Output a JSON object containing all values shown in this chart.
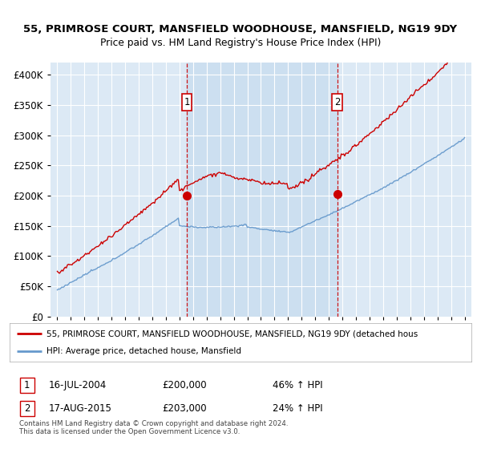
{
  "title_line1": "55, PRIMROSE COURT, MANSFIELD WOODHOUSE, MANSFIELD, NG19 9DY",
  "title_line2": "Price paid vs. HM Land Registry's House Price Index (HPI)",
  "ylim": [
    0,
    420000
  ],
  "yticks": [
    0,
    50000,
    100000,
    150000,
    200000,
    250000,
    300000,
    350000,
    400000
  ],
  "ytick_labels": [
    "£0",
    "£50K",
    "£100K",
    "£150K",
    "£200K",
    "£250K",
    "£300K",
    "£350K",
    "£400K"
  ],
  "background_color": "#dce9f5",
  "shade_color": "#ccdff0",
  "hpi_color": "#6699cc",
  "price_color": "#cc0000",
  "vline_color": "#cc0000",
  "marker_color": "#cc0000",
  "legend_price_label": "55, PRIMROSE COURT, MANSFIELD WOODHOUSE, MANSFIELD, NG19 9DY (detached hous",
  "legend_hpi_label": "HPI: Average price, detached house, Mansfield",
  "sale1_date": "16-JUL-2004",
  "sale1_price": 200000,
  "sale1_pct": "46% ↑ HPI",
  "sale2_date": "17-AUG-2015",
  "sale2_price": 203000,
  "sale2_pct": "24% ↑ HPI",
  "copyright_text": "Contains HM Land Registry data © Crown copyright and database right 2024.\nThis data is licensed under the Open Government Licence v3.0.",
  "x_start_year": 1995,
  "x_end_year": 2025
}
